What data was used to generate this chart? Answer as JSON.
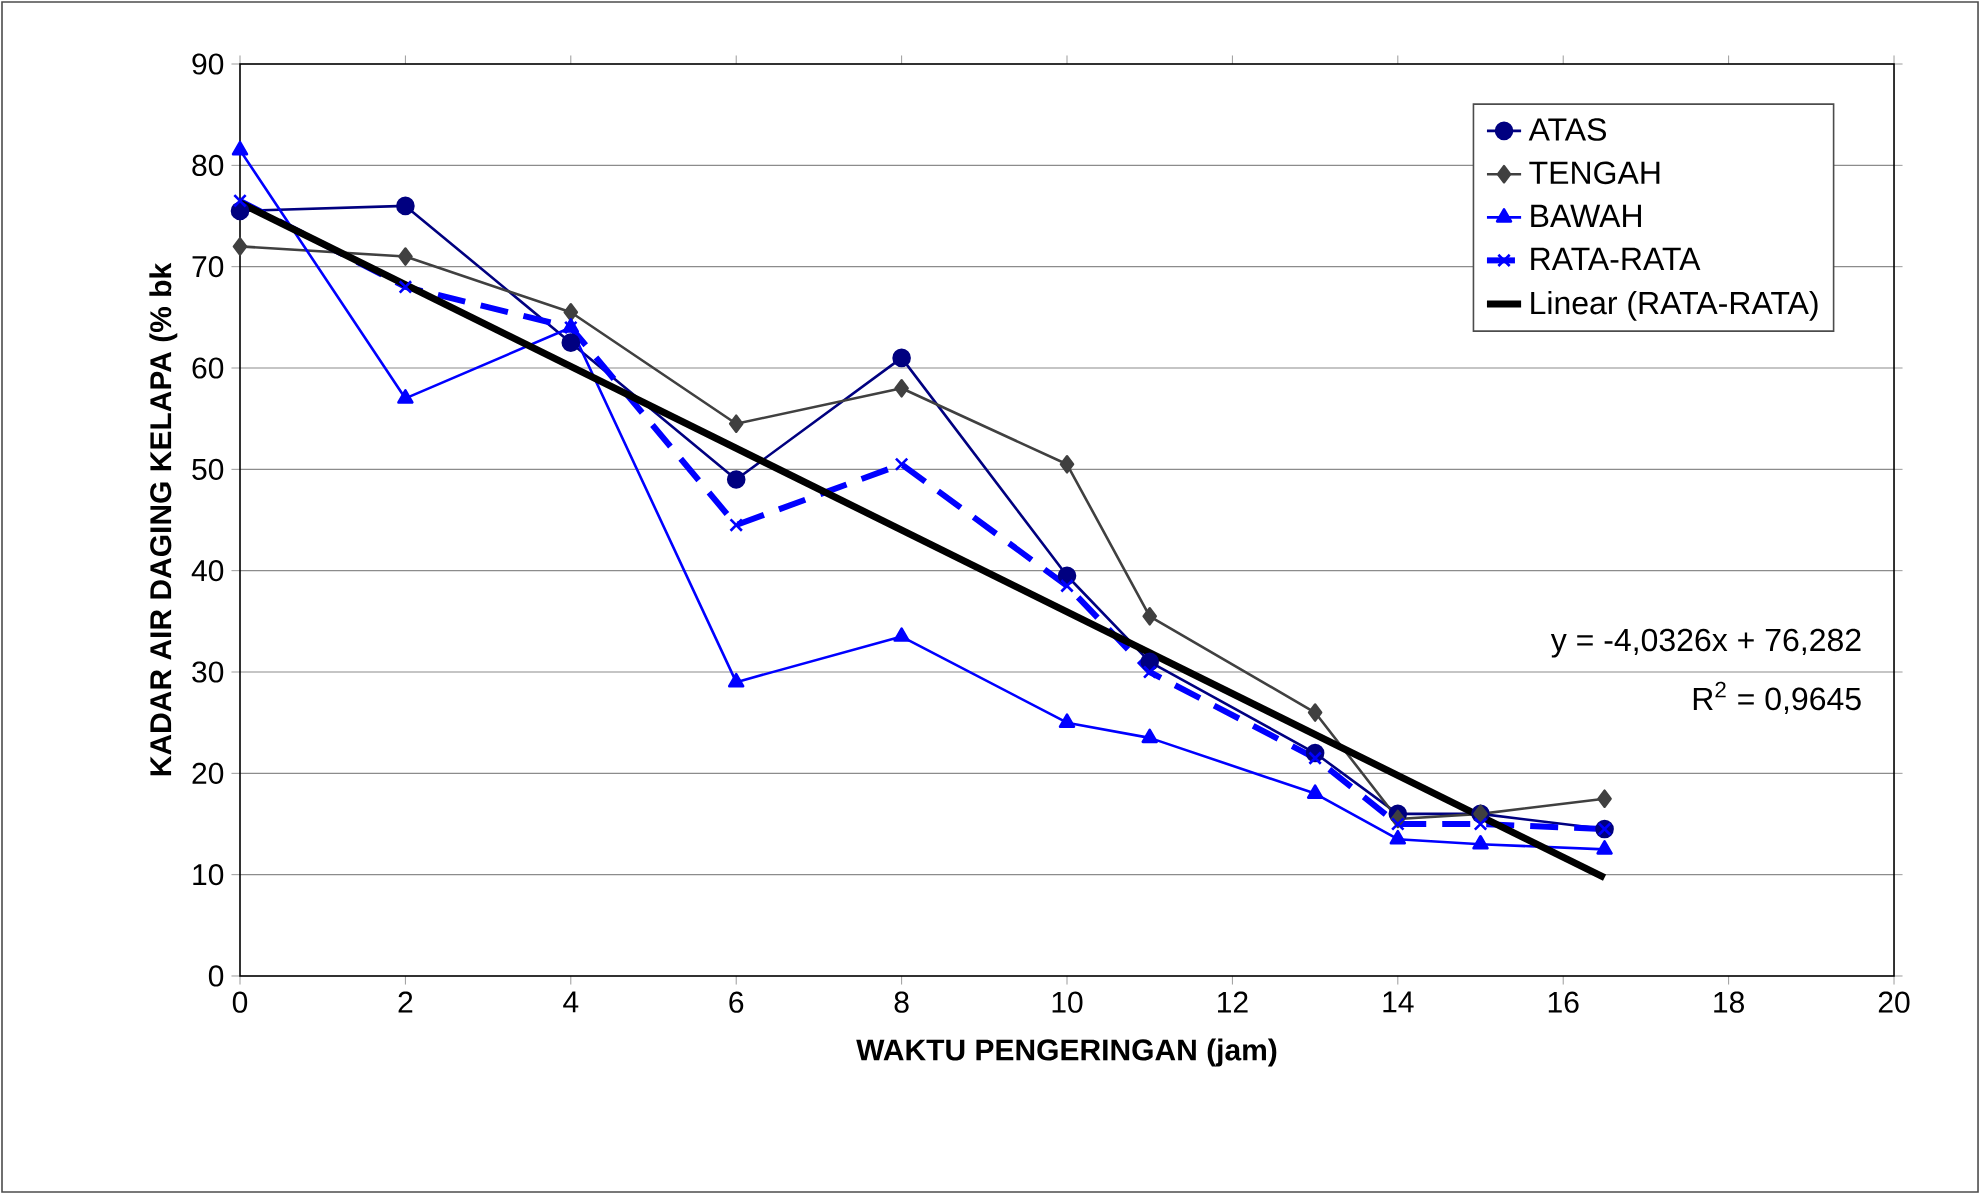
{
  "chart_data": {
    "type": "line",
    "xlabel": "WAKTU PENGERINGAN (jam)",
    "ylabel": "KADAR AIR DAGING KELAPA (% bk",
    "x": [
      0,
      2,
      4,
      6,
      8,
      10,
      11,
      13,
      14,
      15,
      16.5
    ],
    "series": [
      {
        "name": "ATAS",
        "color": "#000080",
        "marker": "circle",
        "values": [
          75.5,
          76,
          62.5,
          49,
          61,
          39.5,
          31,
          22,
          16,
          16,
          14.5
        ]
      },
      {
        "name": "TENGAH",
        "color": "#404040",
        "marker": "diamond",
        "values": [
          72,
          71,
          65.5,
          54.5,
          58,
          50.5,
          35.5,
          26,
          15.5,
          16,
          17.5
        ]
      },
      {
        "name": "BAWAH",
        "color": "#0000ff",
        "marker": "triangle",
        "values": [
          81.5,
          57,
          64,
          29,
          33.5,
          25,
          23.5,
          18,
          13.5,
          13,
          12.5
        ]
      },
      {
        "name": "RATA-RATA",
        "color": "#0000ff",
        "marker": "cross",
        "line_style": "dashed",
        "values": [
          76.5,
          68,
          64,
          44.5,
          50.5,
          38.5,
          30,
          21.5,
          15,
          15,
          14.5
        ]
      },
      {
        "name": "Linear (RATA-RATA)",
        "color": "#000000",
        "marker": "none",
        "x": [
          0,
          16.5
        ],
        "values": [
          76.3,
          9.7
        ]
      }
    ],
    "xlim": [
      0,
      20
    ],
    "xticks": [
      0,
      2,
      4,
      6,
      8,
      10,
      12,
      14,
      16,
      18,
      20
    ],
    "ylim": [
      0,
      90
    ],
    "yticks": [
      0,
      10,
      20,
      30,
      40,
      50,
      60,
      70,
      80,
      90
    ],
    "grid": "y",
    "legend": "top right",
    "annotations": [
      "y = -4,0326x + 76,282",
      "R$^{2}$ = 0,9645"
    ]
  }
}
